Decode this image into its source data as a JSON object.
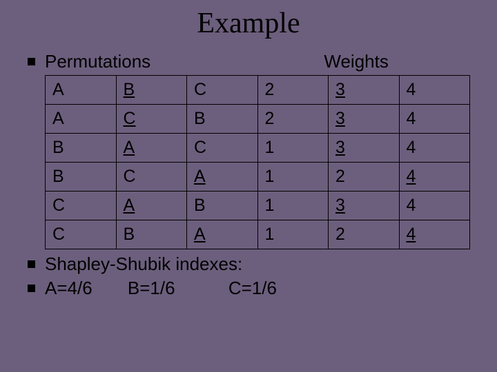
{
  "title": "Example",
  "headers": {
    "left": "Permutations",
    "right": "Weights"
  },
  "table": {
    "type": "table",
    "column_count": 6,
    "rows": [
      [
        {
          "t": "A",
          "u": false
        },
        {
          "t": "B",
          "u": true
        },
        {
          "t": "C",
          "u": false
        },
        {
          "t": "2",
          "u": false
        },
        {
          "t": "3",
          "u": true
        },
        {
          "t": "4",
          "u": false
        }
      ],
      [
        {
          "t": "A",
          "u": false
        },
        {
          "t": "C",
          "u": true
        },
        {
          "t": "B",
          "u": false
        },
        {
          "t": "2",
          "u": false
        },
        {
          "t": "3",
          "u": true
        },
        {
          "t": "4",
          "u": false
        }
      ],
      [
        {
          "t": "B",
          "u": false
        },
        {
          "t": "A",
          "u": true
        },
        {
          "t": "C",
          "u": false
        },
        {
          "t": "1",
          "u": false
        },
        {
          "t": "3",
          "u": true
        },
        {
          "t": "4",
          "u": false
        }
      ],
      [
        {
          "t": "B",
          "u": false
        },
        {
          "t": "C",
          "u": false
        },
        {
          "t": "A",
          "u": true
        },
        {
          "t": "1",
          "u": false
        },
        {
          "t": "2",
          "u": false
        },
        {
          "t": "4",
          "u": true
        }
      ],
      [
        {
          "t": "C",
          "u": false
        },
        {
          "t": "A",
          "u": true
        },
        {
          "t": "B",
          "u": false
        },
        {
          "t": "1",
          "u": false
        },
        {
          "t": "3",
          "u": true
        },
        {
          "t": "4",
          "u": false
        }
      ],
      [
        {
          "t": "C",
          "u": false
        },
        {
          "t": "B",
          "u": false
        },
        {
          "t": "A",
          "u": true
        },
        {
          "t": "1",
          "u": false
        },
        {
          "t": "2",
          "u": false
        },
        {
          "t": "4",
          "u": true
        }
      ]
    ],
    "border_color": "#000000",
    "cell_fontsize": 25
  },
  "shapley_label": "Shapley-Shubik indexes:",
  "indexes": {
    "a": "A=4/6",
    "b": "B=1/6",
    "c": "C=1/6"
  },
  "colors": {
    "background": "#6c5f7d",
    "text": "#000000",
    "bullet": "#000000"
  }
}
